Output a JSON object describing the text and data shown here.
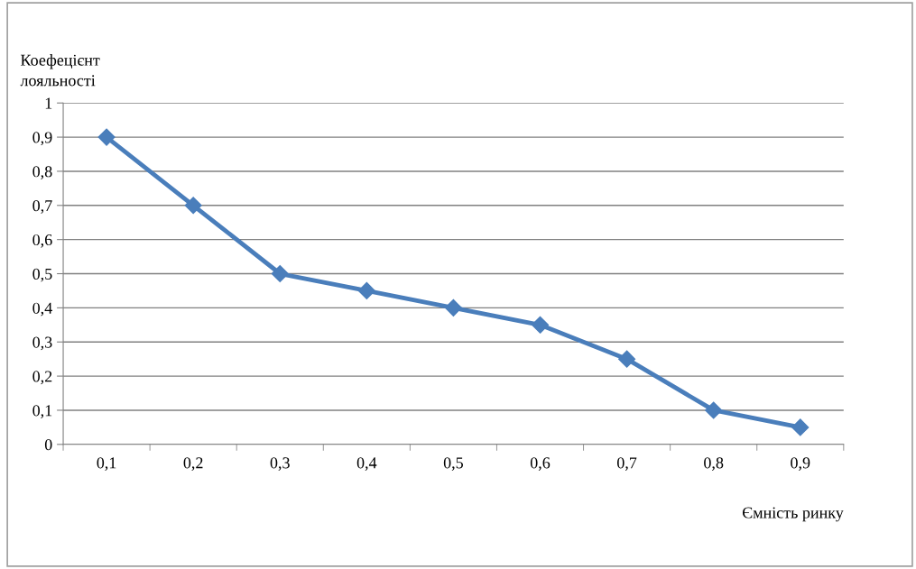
{
  "chart_data": {
    "type": "line",
    "xlabel": "Ємність ринку",
    "ylabel": "Коефецієнт\nлояльності",
    "categories": [
      "0,1",
      "0,2",
      "0,3",
      "0,4",
      "0,5",
      "0,6",
      "0,7",
      "0,8",
      "0,9"
    ],
    "series": [
      {
        "color": "#4a7ebb",
        "values": [
          0.9,
          0.7,
          0.5,
          0.45,
          0.4,
          0.35,
          0.25,
          0.1,
          0.05
        ]
      }
    ],
    "ylim": [
      0,
      1
    ],
    "yticks": [
      0,
      {
        "value": 0.1,
        "label": "0,1"
      },
      {
        "value": 0.2,
        "label": "0,2"
      },
      {
        "value": 0.3,
        "label": "0,3"
      },
      {
        "value": 0.4,
        "label": "0,4"
      },
      {
        "value": 0.5,
        "label": "0,5"
      },
      {
        "value": 0.6,
        "label": "0,6"
      },
      {
        "value": 0.7,
        "label": "0,7"
      },
      {
        "value": 0.8,
        "label": "0,8"
      },
      {
        "value": 0.9,
        "label": "0,9"
      },
      1
    ],
    "grid": "y",
    "marker": "diamond",
    "line_style": "solid",
    "legend": false
  }
}
